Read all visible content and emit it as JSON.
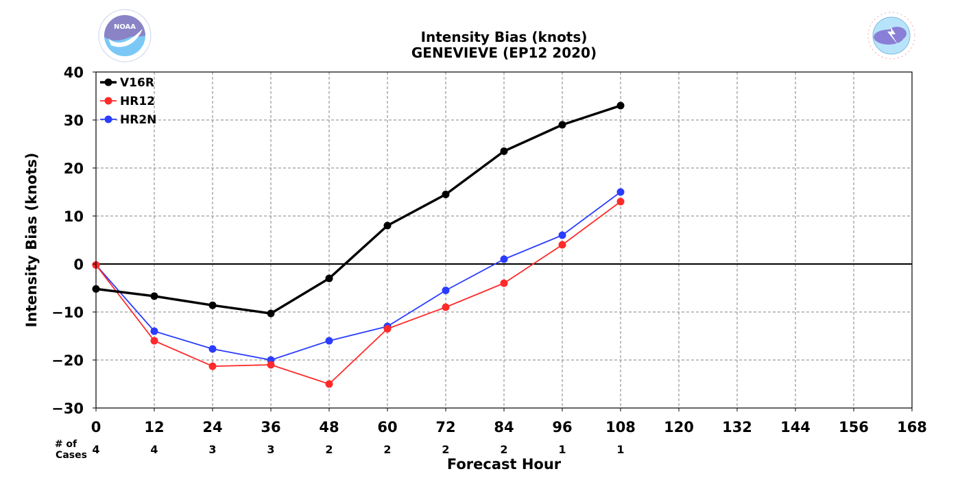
{
  "title_line1": "Intensity Bias (knots)",
  "title_line2": "GENEVIEVE (EP12 2020)",
  "logos": {
    "noaa": {
      "name": "noaa-logo",
      "text": "NOAA",
      "ring_text": "NATIONAL OCEANIC AND ATMOSPHERIC ADMINISTRATION · U.S. DEPARTMENT OF COMMERCE"
    },
    "nws": {
      "name": "nws-logo",
      "ring_text": "NATIONAL WEATHER SERVICE"
    }
  },
  "chart_data": {
    "type": "line",
    "title": "Intensity Bias (knots)\nGENEVIEVE (EP12 2020)",
    "xlabel": "Forecast Hour",
    "ylabel": "Intensity Bias (knots)",
    "xlim": [
      0,
      168
    ],
    "ylim": [
      -30,
      40
    ],
    "x_ticks": [
      0,
      12,
      24,
      36,
      48,
      60,
      72,
      84,
      96,
      108,
      120,
      132,
      144,
      156,
      168
    ],
    "y_ticks": [
      -30,
      -20,
      -10,
      0,
      10,
      20,
      30,
      40
    ],
    "grid": true,
    "legend_position": "top-left",
    "zero_line": true,
    "cases_label": "# of\nCases",
    "cases": [
      {
        "x": 0,
        "n": "4"
      },
      {
        "x": 12,
        "n": "4"
      },
      {
        "x": 24,
        "n": "3"
      },
      {
        "x": 36,
        "n": "3"
      },
      {
        "x": 48,
        "n": "2"
      },
      {
        "x": 60,
        "n": "2"
      },
      {
        "x": 72,
        "n": "2"
      },
      {
        "x": 84,
        "n": "2"
      },
      {
        "x": 96,
        "n": "1"
      },
      {
        "x": 108,
        "n": "1"
      }
    ],
    "series": [
      {
        "name": "V16R",
        "color": "#000000",
        "bold": true,
        "x": [
          0,
          12,
          24,
          36,
          48,
          60,
          72,
          84,
          96,
          108
        ],
        "y": [
          -5.2,
          -6.7,
          -8.6,
          -10.3,
          -3.0,
          8.0,
          14.5,
          23.5,
          29.0,
          33.0
        ]
      },
      {
        "name": "HR12",
        "color": "#ff2a2a",
        "bold": false,
        "x": [
          0,
          12,
          24,
          36,
          48,
          60,
          72,
          84,
          96,
          108
        ],
        "y": [
          -0.2,
          -16.0,
          -21.3,
          -21.0,
          -25.0,
          -13.5,
          -9.0,
          -4.0,
          4.0,
          13.0
        ]
      },
      {
        "name": "HR2N",
        "color": "#2a3cff",
        "bold": false,
        "x": [
          0,
          12,
          24,
          36,
          48,
          60,
          72,
          84,
          96,
          108
        ],
        "y": [
          -0.2,
          -14.0,
          -17.7,
          -20.0,
          -16.0,
          -13.0,
          -5.5,
          1.0,
          6.0,
          15.0
        ]
      }
    ]
  }
}
